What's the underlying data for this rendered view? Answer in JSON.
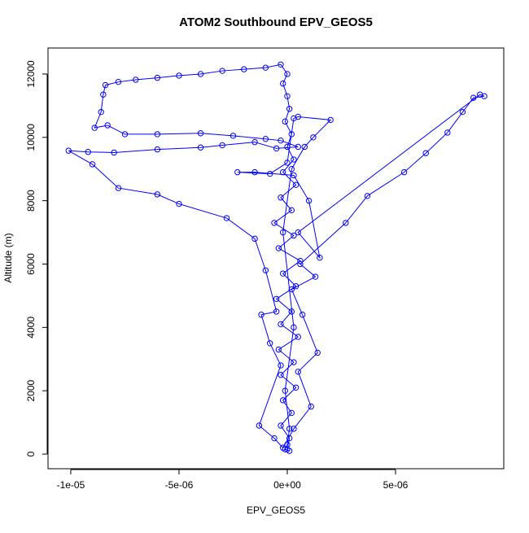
{
  "chart_data": {
    "type": "line",
    "markers": "open-circle",
    "title": "ATOM2 Southbound EPV_GEOS5",
    "x_label": "EPV_GEOS5",
    "y_label": "Altitude (m)",
    "color": "#0000ff",
    "xlim": [
      -1.105e-05,
      1e-05
    ],
    "ylim": [
      -462,
      12821
    ],
    "xticks": [
      {
        "value": -1e-05,
        "label": "-1e-05"
      },
      {
        "value": -5e-06,
        "label": "-5e-06"
      },
      {
        "value": 0,
        "label": "0e+00"
      },
      {
        "value": 5e-06,
        "label": "5e-06"
      }
    ],
    "yticks": [
      0,
      2000,
      4000,
      6000,
      8000,
      10000,
      12000
    ],
    "x": [
      0,
      1e-07,
      -3e-07,
      2e-07,
      -2e-07,
      4e-07,
      -3e-07,
      3e-07,
      -4e-07,
      5e-07,
      -3e-07,
      2e-07,
      -5e-07,
      4e-07,
      -2e-07,
      6e-07,
      -4e-07,
      3e-07,
      -6e-07,
      2e-07,
      -3e-07,
      4e-07,
      -2e-07,
      3e-07,
      0,
      2e-07,
      -1e-07,
      1e-07,
      0,
      -2e-07,
      0,
      -3e-07,
      -1e-06,
      -2e-06,
      -3e-06,
      -4e-06,
      -5e-06,
      -6e-06,
      -7e-06,
      -7.8e-06,
      -8.4e-06,
      -8.5e-06,
      -8.6e-06,
      -8.9e-06,
      -8.3e-06,
      -7.5e-06,
      -6e-06,
      -4e-06,
      -2.5e-06,
      -1e-06,
      -3e-07,
      5e-07,
      -5e-07,
      -1.5e-06,
      -3e-06,
      -4e-06,
      -6e-06,
      -8e-06,
      -9.2e-06,
      -1.01e-05,
      -9e-06,
      -7.8e-06,
      -6e-06,
      -5e-06,
      -2.8e-06,
      -1.5e-06,
      -1e-06,
      -5e-07,
      -1.2e-06,
      -8e-07,
      -3e-07,
      -1.3e-06,
      -6e-07,
      -2e-07,
      3e-07,
      1.1e-06,
      5e-07,
      1.4e-06,
      7e-07,
      2e-07,
      1.3e-06,
      6e-07,
      2.7e-06,
      3.7e-06,
      5.4e-06,
      6.4e-06,
      7.4e-06,
      8.1e-06,
      8.6e-06,
      9.1e-06,
      8.9e-06,
      5e-07,
      1.5e-06,
      1e-06,
      3e-07,
      -1.5e-06,
      -2.3e-06,
      -8e-07,
      0,
      3e-07,
      5e-07,
      2e-06,
      1.2e-06,
      8e-07,
      2e-07,
      -2e-07,
      3e-07,
      -1e-07,
      1e-07,
      0,
      -1e-07,
      1e-07
    ],
    "values": [
      150,
      500,
      900,
      1300,
      1700,
      2100,
      2500,
      2900,
      3300,
      3700,
      4100,
      4500,
      4900,
      5300,
      5700,
      6100,
      6500,
      6900,
      7300,
      7700,
      8100,
      8500,
      8900,
      9300,
      9700,
      10100,
      10500,
      10900,
      11300,
      11700,
      12000,
      12300,
      12200,
      12150,
      12100,
      12000,
      11950,
      11880,
      11820,
      11750,
      11650,
      11350,
      10800,
      10300,
      10380,
      10100,
      10100,
      10130,
      10050,
      9950,
      9900,
      9700,
      9650,
      9850,
      9750,
      9680,
      9620,
      9520,
      9540,
      9580,
      9150,
      8400,
      8200,
      7900,
      7450,
      6800,
      5800,
      4500,
      4400,
      3500,
      2800,
      900,
      500,
      200,
      800,
      1500,
      2600,
      3200,
      4400,
      5200,
      5600,
      6000,
      7300,
      8150,
      8900,
      9500,
      10150,
      10800,
      11250,
      11300,
      11350,
      7000,
      6200,
      8000,
      8800,
      8900,
      8900,
      8850,
      9200,
      10600,
      10650,
      10550,
      10000,
      9700,
      9000,
      7000,
      4000,
      2000,
      800,
      300,
      150,
      100
    ]
  }
}
